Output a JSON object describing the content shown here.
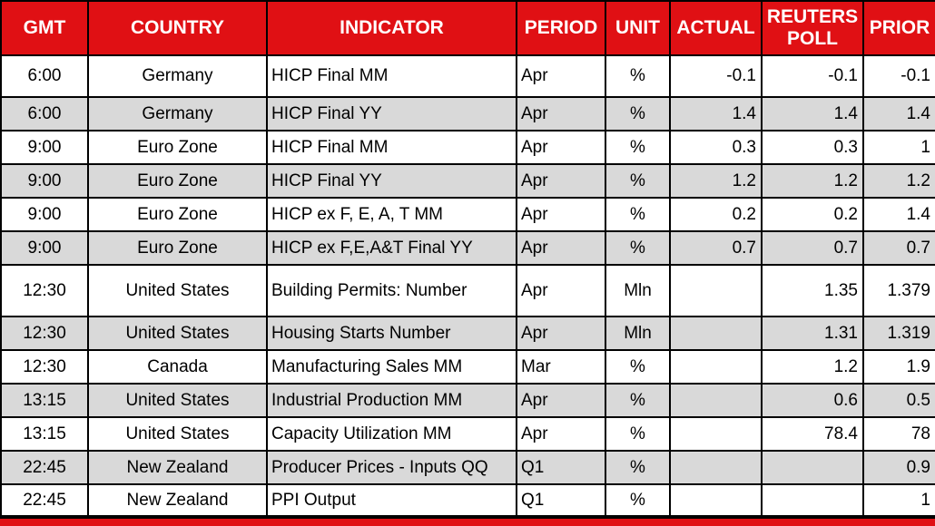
{
  "table": {
    "columns": [
      "GMT",
      "COUNTRY",
      "INDICATOR",
      "PERIOD",
      "UNIT",
      "ACTUAL",
      "REUTERS POLL",
      "PRIOR"
    ],
    "column_keys": [
      "gmt",
      "country",
      "indicator",
      "period",
      "unit",
      "actual",
      "reuters-poll",
      "prior"
    ],
    "rows": [
      [
        "6:00",
        "Germany",
        "HICP Final MM",
        "Apr",
        "%",
        "-0.1",
        "-0.1",
        "-0.1"
      ],
      [
        "6:00",
        "Germany",
        "HICP Final YY",
        "Apr",
        "%",
        "1.4",
        "1.4",
        "1.4"
      ],
      [
        "9:00",
        "Euro Zone",
        "HICP Final MM",
        "Apr",
        "%",
        "0.3",
        "0.3",
        "1"
      ],
      [
        "9:00",
        "Euro Zone",
        "HICP Final YY",
        "Apr",
        "%",
        "1.2",
        "1.2",
        "1.2"
      ],
      [
        "9:00",
        "Euro Zone",
        "HICP ex F, E, A, T MM",
        "Apr",
        "%",
        "0.2",
        "0.2",
        "1.4"
      ],
      [
        "9:00",
        "Euro Zone",
        "HICP ex F,E,A&T Final YY",
        "Apr",
        "%",
        "0.7",
        "0.7",
        "0.7"
      ],
      [
        "12:30",
        "United States",
        "Building Permits: Number",
        "Apr",
        "Mln",
        "",
        "1.35",
        "1.379"
      ],
      [
        "12:30",
        "United States",
        "Housing Starts Number",
        "Apr",
        "Mln",
        "",
        "1.31",
        "1.319"
      ],
      [
        "12:30",
        "Canada",
        "Manufacturing Sales MM",
        "Mar",
        "%",
        "",
        "1.2",
        "1.9"
      ],
      [
        "13:15",
        "United States",
        "Industrial Production MM",
        "Apr",
        "%",
        "",
        "0.6",
        "0.5"
      ],
      [
        "13:15",
        "United States",
        "Capacity Utilization MM",
        "Apr",
        "%",
        "",
        "78.4",
        "78"
      ],
      [
        "22:45",
        "New Zealand",
        "Producer Prices - Inputs QQ",
        "Q1",
        "%",
        "",
        "",
        "0.9"
      ],
      [
        "22:45",
        "New Zealand",
        "PPI Output",
        "Q1",
        "%",
        "",
        "",
        "1"
      ]
    ]
  },
  "colors": {
    "header_red": "#e01014",
    "row_alt_gray": "#d9d9d9",
    "row_white": "#ffffff",
    "grid_black": "#000000",
    "header_text": "#ffffff",
    "body_text": "#000000"
  }
}
